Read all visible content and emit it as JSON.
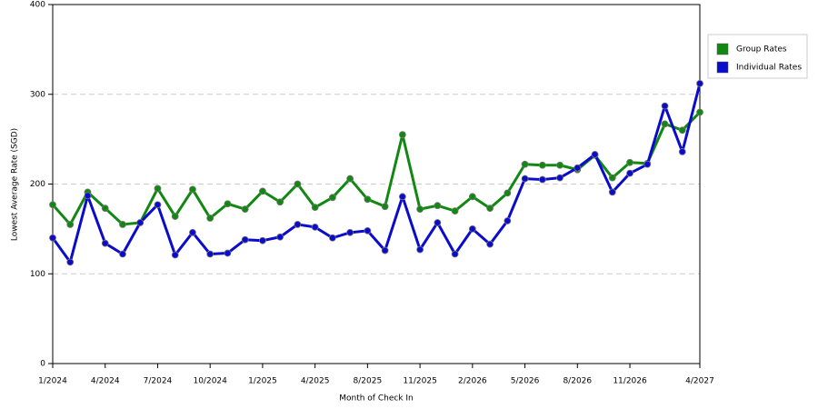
{
  "chart_data": {
    "type": "line",
    "x_label": "Month of Check In",
    "y_label": "Lowest Average Rate (SGD)",
    "categories": [
      "1/2024",
      null,
      null,
      "4/2024",
      null,
      null,
      "7/2024",
      null,
      null,
      "10/2024",
      null,
      null,
      "1/2025",
      null,
      null,
      "4/2025",
      null,
      null,
      "8/2025",
      null,
      null,
      "11/2025",
      null,
      null,
      "2/2026",
      null,
      null,
      "5/2026",
      null,
      null,
      "8/2026",
      null,
      null,
      "11/2026",
      null,
      null,
      null,
      "4/2027"
    ],
    "series": [
      {
        "name": "Group Rates",
        "color": "#118811",
        "values": [
          177,
          155,
          191,
          173,
          155,
          157,
          195,
          164,
          194,
          162,
          178,
          172,
          192,
          180,
          200,
          174,
          185,
          206,
          183,
          175,
          255,
          172,
          176,
          170,
          186,
          173,
          190,
          222,
          221,
          221,
          216,
          232,
          207,
          224,
          223,
          267,
          260,
          280
        ]
      },
      {
        "name": "Individual Rates",
        "color": "#0b0bcc",
        "values": [
          140,
          113,
          187,
          134,
          122,
          157,
          177,
          121,
          146,
          122,
          123,
          138,
          137,
          141,
          155,
          152,
          140,
          146,
          148,
          126,
          186,
          127,
          157,
          122,
          150,
          133,
          159,
          206,
          205,
          207,
          218,
          233,
          191,
          212,
          222,
          287,
          236,
          312
        ]
      }
    ],
    "ylim": [
      0,
      400
    ],
    "yticks": [
      0,
      100,
      200,
      300,
      400
    ],
    "grid": true,
    "legend": "right"
  }
}
